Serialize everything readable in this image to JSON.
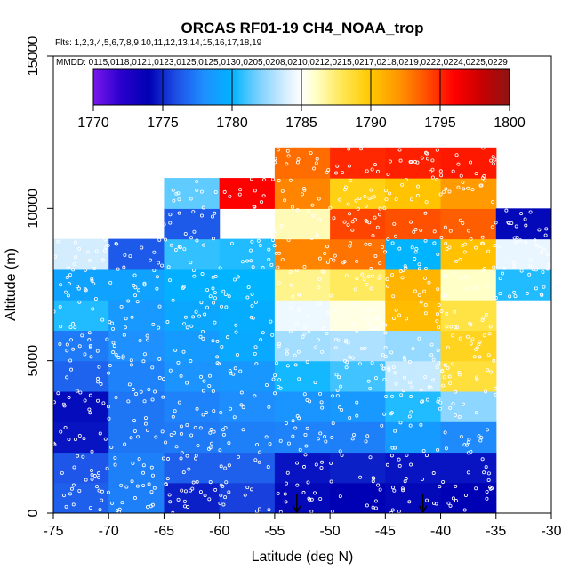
{
  "chart_data": {
    "type": "heatmap",
    "title": "ORCAS RF01-19 CH4_NOAA_trop",
    "flights_label": "Flts: 1,2,3,4,5,6,7,8,9,10,11,12,13,14,15,16,17,18,19",
    "dates_label": "MMDD: 0115,0118,0121,0123,0125,0125,0130,0205,0208,0210,0212,0215,0217,0218,0219,0222,0224,0225,0229",
    "xlabel": "Latitude (deg N)",
    "ylabel": "Altitude (m)",
    "xlim": [
      -75,
      -30
    ],
    "ylim": [
      0,
      15000
    ],
    "x_ticks": [
      -75,
      -70,
      -65,
      -60,
      -55,
      -50,
      -45,
      -40,
      -35,
      -30
    ],
    "x_tick_labels": [
      "-75",
      "-70",
      "-65",
      "-60",
      "-55",
      "-50",
      "-45",
      "-40",
      "-35",
      "-30"
    ],
    "y_ticks": [
      0,
      5000,
      10000,
      15000
    ],
    "y_tick_labels": [
      "0",
      "5000",
      "10000",
      "15000"
    ],
    "colorbar": {
      "min": 1770,
      "max": 1800,
      "ticks": [
        1770,
        1775,
        1780,
        1785,
        1790,
        1795,
        1800
      ],
      "tick_labels": [
        "1770",
        "1775",
        "1780",
        "1785",
        "1790",
        "1795",
        "1800"
      ],
      "stops": [
        {
          "value": 1770,
          "color": "#7a18ee"
        },
        {
          "value": 1772,
          "color": "#2a00cc"
        },
        {
          "value": 1774,
          "color": "#0000b4"
        },
        {
          "value": 1776,
          "color": "#1e50e6"
        },
        {
          "value": 1778,
          "color": "#1e90ff"
        },
        {
          "value": 1780,
          "color": "#00b4ff"
        },
        {
          "value": 1782,
          "color": "#7fd2ff"
        },
        {
          "value": 1784,
          "color": "#dcf0ff"
        },
        {
          "value": 1785,
          "color": "#ffffff"
        },
        {
          "value": 1786,
          "color": "#ffffc8"
        },
        {
          "value": 1788,
          "color": "#ffe650"
        },
        {
          "value": 1790,
          "color": "#ffc800"
        },
        {
          "value": 1792,
          "color": "#ff9600"
        },
        {
          "value": 1794,
          "color": "#ff5000"
        },
        {
          "value": 1796,
          "color": "#ff0000"
        },
        {
          "value": 1798,
          "color": "#c80000"
        },
        {
          "value": 1800,
          "color": "#8c1414"
        }
      ]
    },
    "lat_bin_width": 5,
    "alt_bin_height": 1000,
    "cells": [
      {
        "lat": -75,
        "alt": 0,
        "value": 1776.5
      },
      {
        "lat": -75,
        "alt": 1000,
        "value": 1776.2
      },
      {
        "lat": -75,
        "alt": 2000,
        "value": 1774.5
      },
      {
        "lat": -75,
        "alt": 3000,
        "value": 1774.3
      },
      {
        "lat": -75,
        "alt": 4000,
        "value": 1776.6
      },
      {
        "lat": -75,
        "alt": 5000,
        "value": 1777.3
      },
      {
        "lat": -75,
        "alt": 6000,
        "value": 1780.5
      },
      {
        "lat": -75,
        "alt": 7000,
        "value": 1779.0
      },
      {
        "lat": -75,
        "alt": 8000,
        "value": 1783.8
      },
      {
        "lat": -70,
        "alt": 0,
        "value": 1777.5
      },
      {
        "lat": -70,
        "alt": 1000,
        "value": 1777.5
      },
      {
        "lat": -70,
        "alt": 2000,
        "value": 1777.2
      },
      {
        "lat": -70,
        "alt": 3000,
        "value": 1777.2
      },
      {
        "lat": -70,
        "alt": 4000,
        "value": 1777.6
      },
      {
        "lat": -70,
        "alt": 5000,
        "value": 1778.0
      },
      {
        "lat": -70,
        "alt": 6000,
        "value": 1778.5
      },
      {
        "lat": -70,
        "alt": 7000,
        "value": 1779.0
      },
      {
        "lat": -70,
        "alt": 8000,
        "value": 1776.3
      },
      {
        "lat": -65,
        "alt": 0,
        "value": 1774.8
      },
      {
        "lat": -65,
        "alt": 1000,
        "value": 1776.5
      },
      {
        "lat": -65,
        "alt": 2000,
        "value": 1777.3
      },
      {
        "lat": -65,
        "alt": 3000,
        "value": 1777.6
      },
      {
        "lat": -65,
        "alt": 4000,
        "value": 1778.2
      },
      {
        "lat": -65,
        "alt": 5000,
        "value": 1778.6
      },
      {
        "lat": -65,
        "alt": 6000,
        "value": 1779.3
      },
      {
        "lat": -65,
        "alt": 7000,
        "value": 1779.8
      },
      {
        "lat": -65,
        "alt": 8000,
        "value": 1780.8
      },
      {
        "lat": -65,
        "alt": 9000,
        "value": 1776.3
      },
      {
        "lat": -65,
        "alt": 10000,
        "value": 1781.5
      },
      {
        "lat": -60,
        "alt": 0,
        "value": 1775.6
      },
      {
        "lat": -60,
        "alt": 1000,
        "value": 1776.5
      },
      {
        "lat": -60,
        "alt": 2000,
        "value": 1777.5
      },
      {
        "lat": -60,
        "alt": 3000,
        "value": 1777.9
      },
      {
        "lat": -60,
        "alt": 4000,
        "value": 1778.4
      },
      {
        "lat": -60,
        "alt": 5000,
        "value": 1779.4
      },
      {
        "lat": -60,
        "alt": 6000,
        "value": 1779.6
      },
      {
        "lat": -60,
        "alt": 7000,
        "value": 1780.0
      },
      {
        "lat": -60,
        "alt": 8000,
        "value": 1780.5
      },
      {
        "lat": -60,
        "alt": 10000,
        "value": 1796.0
      },
      {
        "lat": -55,
        "alt": 0,
        "value": 1774.2
      },
      {
        "lat": -55,
        "alt": 1000,
        "value": 1774.5
      },
      {
        "lat": -55,
        "alt": 2000,
        "value": 1777.6
      },
      {
        "lat": -55,
        "alt": 3000,
        "value": 1778.3
      },
      {
        "lat": -55,
        "alt": 4000,
        "value": 1780.3
      },
      {
        "lat": -55,
        "alt": 5000,
        "value": 1782.8
      },
      {
        "lat": -55,
        "alt": 6000,
        "value": 1784.5
      },
      {
        "lat": -55,
        "alt": 7000,
        "value": 1787.0
      },
      {
        "lat": -55,
        "alt": 8000,
        "value": 1792.5
      },
      {
        "lat": -55,
        "alt": 9000,
        "value": 1786.3
      },
      {
        "lat": -55,
        "alt": 10000,
        "value": 1792.5
      },
      {
        "lat": -55,
        "alt": 11000,
        "value": 1793.2
      },
      {
        "lat": -50,
        "alt": 0,
        "value": 1774.0
      },
      {
        "lat": -50,
        "alt": 1000,
        "value": 1774.8
      },
      {
        "lat": -50,
        "alt": 2000,
        "value": 1777.5
      },
      {
        "lat": -50,
        "alt": 3000,
        "value": 1778.5
      },
      {
        "lat": -50,
        "alt": 4000,
        "value": 1781.0
      },
      {
        "lat": -50,
        "alt": 5000,
        "value": 1783.0
      },
      {
        "lat": -50,
        "alt": 6000,
        "value": 1785.5
      },
      {
        "lat": -50,
        "alt": 7000,
        "value": 1787.8
      },
      {
        "lat": -50,
        "alt": 8000,
        "value": 1793.0
      },
      {
        "lat": -50,
        "alt": 9000,
        "value": 1794.3
      },
      {
        "lat": -50,
        "alt": 10000,
        "value": 1789.5
      },
      {
        "lat": -50,
        "alt": 11000,
        "value": 1795.0
      },
      {
        "lat": -45,
        "alt": 0,
        "value": 1774.2
      },
      {
        "lat": -45,
        "alt": 1000,
        "value": 1774.5
      },
      {
        "lat": -45,
        "alt": 2000,
        "value": 1778.6
      },
      {
        "lat": -45,
        "alt": 3000,
        "value": 1780.5
      },
      {
        "lat": -45,
        "alt": 4000,
        "value": 1783.5
      },
      {
        "lat": -45,
        "alt": 5000,
        "value": 1782.5
      },
      {
        "lat": -45,
        "alt": 6000,
        "value": 1790.5
      },
      {
        "lat": -45,
        "alt": 7000,
        "value": 1790.8
      },
      {
        "lat": -45,
        "alt": 8000,
        "value": 1780.0
      },
      {
        "lat": -45,
        "alt": 9000,
        "value": 1794.0
      },
      {
        "lat": -45,
        "alt": 10000,
        "value": 1790.2
      },
      {
        "lat": -45,
        "alt": 11000,
        "value": 1795.2
      },
      {
        "lat": -40,
        "alt": 0,
        "value": 1774.0
      },
      {
        "lat": -40,
        "alt": 1000,
        "value": 1774.5
      },
      {
        "lat": -40,
        "alt": 2000,
        "value": 1777.8
      },
      {
        "lat": -40,
        "alt": 3000,
        "value": 1782.3
      },
      {
        "lat": -40,
        "alt": 4000,
        "value": 1788.5
      },
      {
        "lat": -40,
        "alt": 5000,
        "value": 1789.2
      },
      {
        "lat": -40,
        "alt": 6000,
        "value": 1788.3
      },
      {
        "lat": -40,
        "alt": 7000,
        "value": 1786.0
      },
      {
        "lat": -40,
        "alt": 8000,
        "value": 1790.3
      },
      {
        "lat": -40,
        "alt": 9000,
        "value": 1793.6
      },
      {
        "lat": -40,
        "alt": 10000,
        "value": 1791.8
      },
      {
        "lat": -40,
        "alt": 11000,
        "value": 1795.4
      },
      {
        "lat": -35,
        "alt": 7000,
        "value": 1780.5
      },
      {
        "lat": -35,
        "alt": 8000,
        "value": 1784.4
      },
      {
        "lat": -35,
        "alt": 9000,
        "value": 1774.2
      }
    ],
    "markers": [
      {
        "lat": -53.0,
        "alt": 0,
        "label": "arrow"
      },
      {
        "lat": -41.6,
        "alt": 0,
        "label": "arrow"
      }
    ]
  }
}
